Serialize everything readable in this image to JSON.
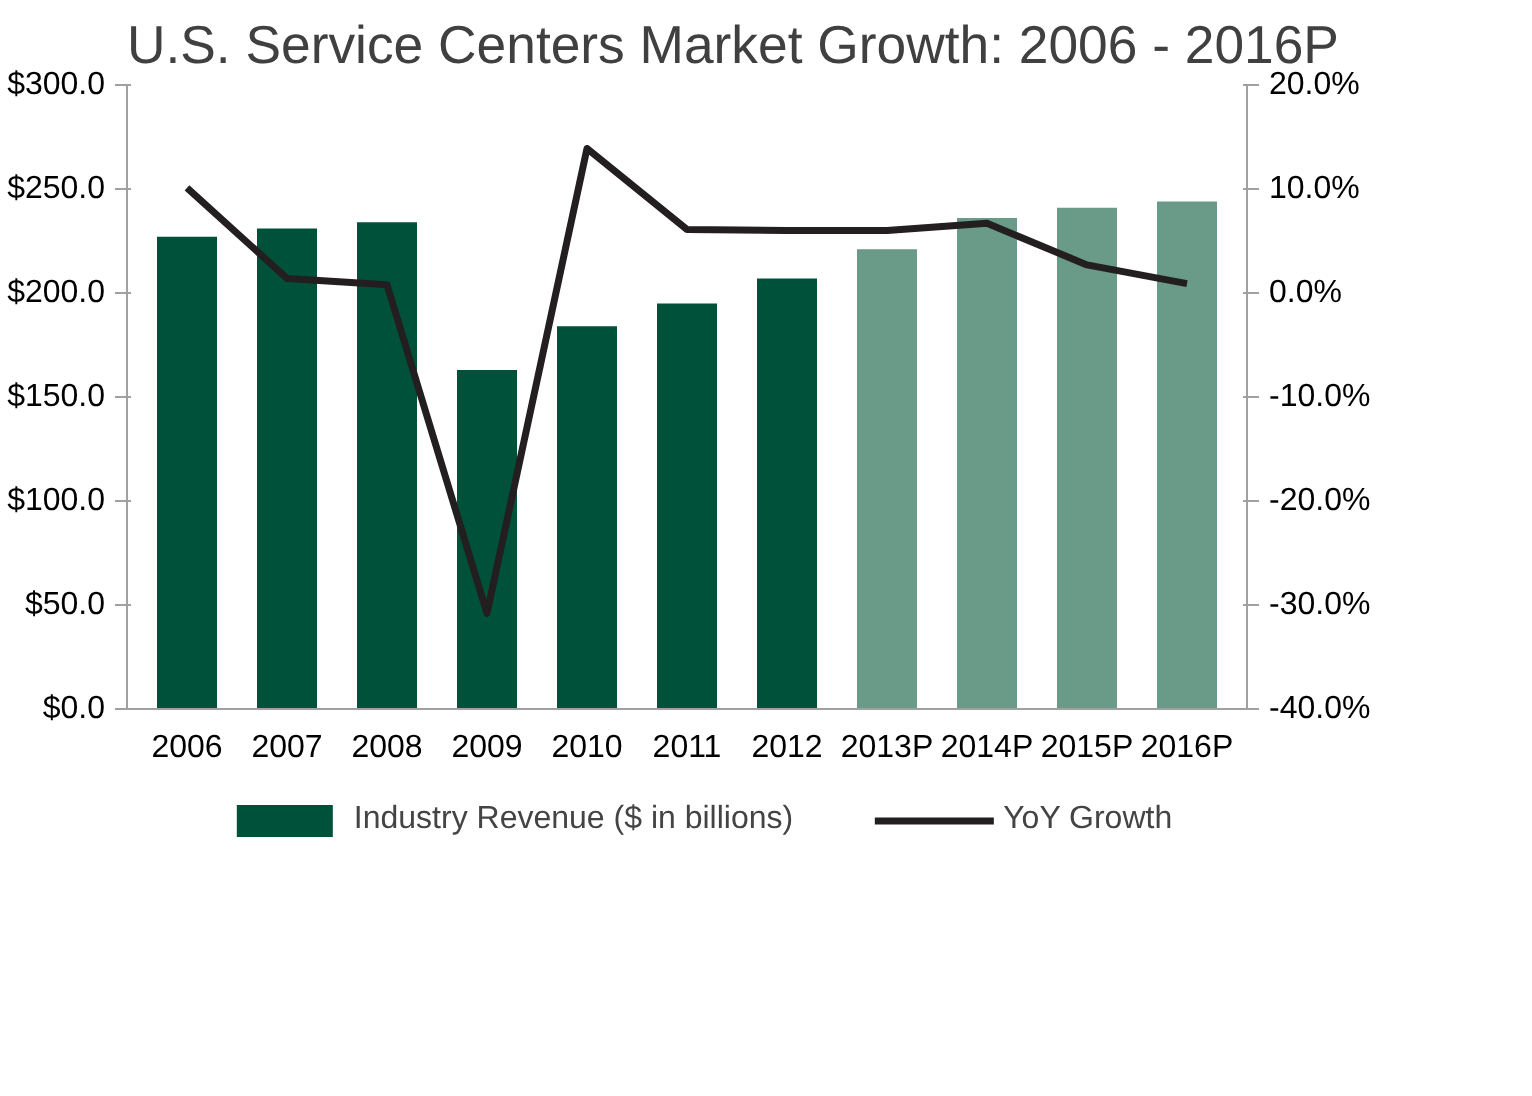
{
  "chart_data": {
    "type": "bar",
    "title": "U.S. Service Centers Market Growth: 2006 - 2016P",
    "categories": [
      "2006",
      "2007",
      "2008",
      "2009",
      "2010",
      "2011",
      "2012",
      "2013P",
      "2014P",
      "2015P",
      "2016P"
    ],
    "series": [
      {
        "name": "Industry Revenue ($ in billions)",
        "colors": [
          "#00513a",
          "#00513a",
          "#00513a",
          "#00513a",
          "#00513a",
          "#00513a",
          "#00513a",
          "#6a9a88",
          "#6a9a88",
          "#6a9a88",
          "#6a9a88"
        ],
        "values": [
          227,
          231,
          234,
          163,
          184,
          195,
          207,
          221,
          236,
          241,
          244
        ]
      },
      {
        "name": "YoY Growth",
        "type": "line",
        "axis": "y2",
        "color": "#231f20",
        "values": [
          10.1,
          1.4,
          0.8,
          -30.8,
          13.9,
          6.1,
          6.0,
          6.0,
          6.7,
          2.7,
          0.9
        ]
      }
    ],
    "ylim": [
      0,
      300
    ],
    "yticks": [
      {
        "value": 0,
        "label": "$0.0"
      },
      {
        "value": 50,
        "label": "$50.0"
      },
      {
        "value": 100,
        "label": "$100.0"
      },
      {
        "value": 150,
        "label": "$150.0"
      },
      {
        "value": 200,
        "label": "$200.0"
      },
      {
        "value": 250,
        "label": "$250.0"
      },
      {
        "value": 300,
        "label": "$300.0"
      }
    ],
    "y2lim": [
      -40,
      20
    ],
    "y2ticks": [
      {
        "value": -40,
        "label": "-40.0%"
      },
      {
        "value": -30,
        "label": "-30.0%"
      },
      {
        "value": -20,
        "label": "-20.0%"
      },
      {
        "value": -10,
        "label": "-10.0%"
      },
      {
        "value": 0,
        "label": "0.0%"
      },
      {
        "value": 10,
        "label": "10.0%"
      },
      {
        "value": 20,
        "label": "20.0%"
      }
    ],
    "grid": false,
    "legend": "bottom",
    "marker": "none",
    "line_style": "solid"
  }
}
